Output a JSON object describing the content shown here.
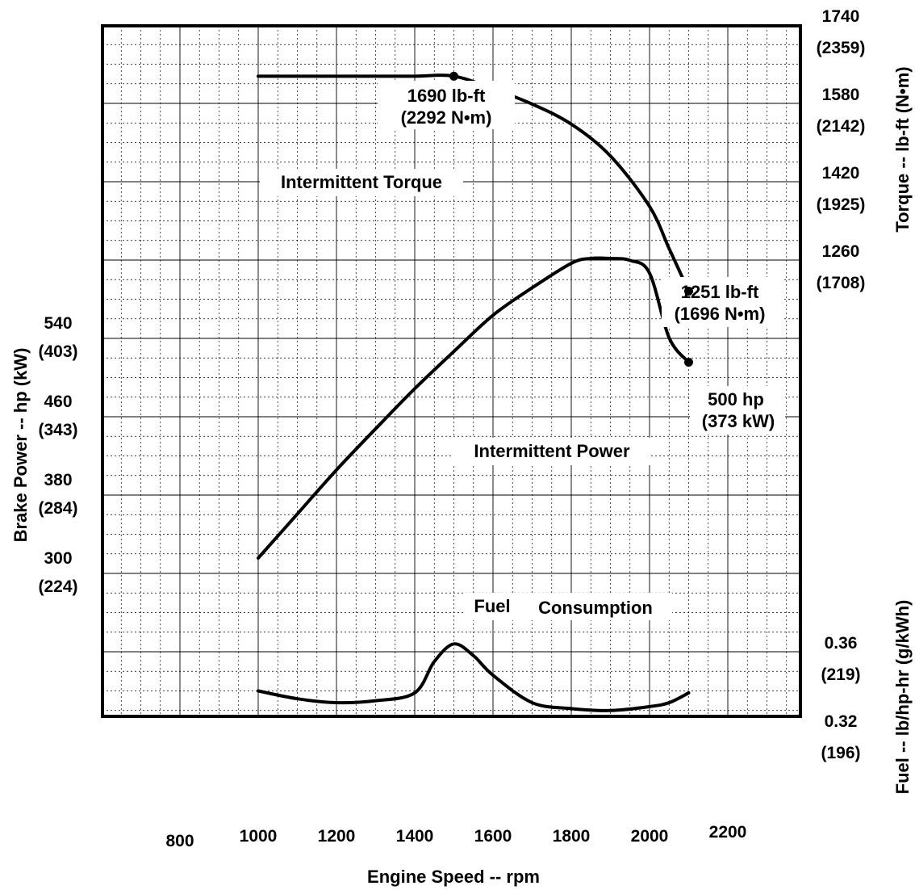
{
  "chart_data": {
    "type": "line",
    "x_axis": {
      "title": "Engine Speed -- rpm",
      "ticks": [
        800,
        1000,
        1200,
        1400,
        1600,
        1800,
        2000,
        2200
      ],
      "tick_labels": [
        "800",
        "1000",
        "1200",
        "1400",
        "1600",
        "1800",
        "2000",
        "2200"
      ]
    },
    "left_axis": {
      "title": "Brake Power -- hp (kW)",
      "ticks": [
        {
          "value": 540,
          "label": "540",
          "sub": "(403)"
        },
        {
          "value": 460,
          "label": "460",
          "sub": "(343)"
        },
        {
          "value": 380,
          "label": "380",
          "sub": "(284)"
        },
        {
          "value": 300,
          "label": "300",
          "sub": "(224)"
        }
      ]
    },
    "right_torque_axis": {
      "title": "Torque -- lb-ft (N•m)",
      "ticks": [
        {
          "value": 1740,
          "label": "1740",
          "sub": "(2359)"
        },
        {
          "value": 1580,
          "label": "1580",
          "sub": "(2142)"
        },
        {
          "value": 1420,
          "label": "1420",
          "sub": "(1925)"
        },
        {
          "value": 1260,
          "label": "1260",
          "sub": "(1708)"
        }
      ]
    },
    "right_fuel_axis": {
      "title": "Fuel -- lb/hp-hr (g/kWh)",
      "ticks": [
        {
          "value": 0.36,
          "label": "0.36",
          "sub": "(219)"
        },
        {
          "value": 0.32,
          "label": "0.32",
          "sub": "(196)"
        }
      ]
    },
    "grid": true,
    "series": [
      {
        "name": "Intermittent Torque",
        "units": "lb-ft",
        "x": [
          1000,
          1100,
          1200,
          1300,
          1400,
          1500,
          1600,
          1700,
          1800,
          1900,
          2000,
          2050,
          2100
        ],
        "y": [
          1690,
          1690,
          1690,
          1690,
          1690,
          1690,
          1664,
          1633,
          1592,
          1527,
          1424,
          1338,
          1251
        ],
        "markers": [
          {
            "x": 1500,
            "y": 1690
          },
          {
            "x": 2100,
            "y": 1251
          }
        ]
      },
      {
        "name": "Intermittent Power",
        "units": "hp",
        "x": [
          1000,
          1100,
          1200,
          1300,
          1400,
          1500,
          1600,
          1700,
          1800,
          1850,
          1900,
          1950,
          2000,
          2050,
          2100
        ],
        "y": [
          300,
          345,
          390,
          432,
          473,
          511,
          548,
          576,
          601,
          606,
          606,
          604,
          591,
          525,
          500
        ],
        "markers": [
          {
            "x": 2100,
            "y": 500
          }
        ]
      },
      {
        "name": "Fuel Consumption",
        "units": "lb/hp-hr",
        "x": [
          1000,
          1100,
          1200,
          1300,
          1400,
          1450,
          1500,
          1550,
          1600,
          1700,
          1800,
          1900,
          2000,
          2050,
          2100
        ],
        "y": [
          0.34,
          0.336,
          0.334,
          0.335,
          0.339,
          0.355,
          0.364,
          0.358,
          0.348,
          0.334,
          0.331,
          0.33,
          0.332,
          0.334,
          0.339
        ]
      }
    ],
    "annotations": [
      {
        "lines": [
          "1690 lb-ft",
          "(2292 N•m)"
        ]
      },
      {
        "lines": [
          "1251 lb-ft",
          "(1696 N•m)"
        ]
      },
      {
        "lines": [
          "500 hp",
          "(373 kW)"
        ]
      }
    ],
    "curve_labels": [
      "Intermittent Torque",
      "Intermittent Power",
      "Fuel",
      "Consumption"
    ]
  }
}
